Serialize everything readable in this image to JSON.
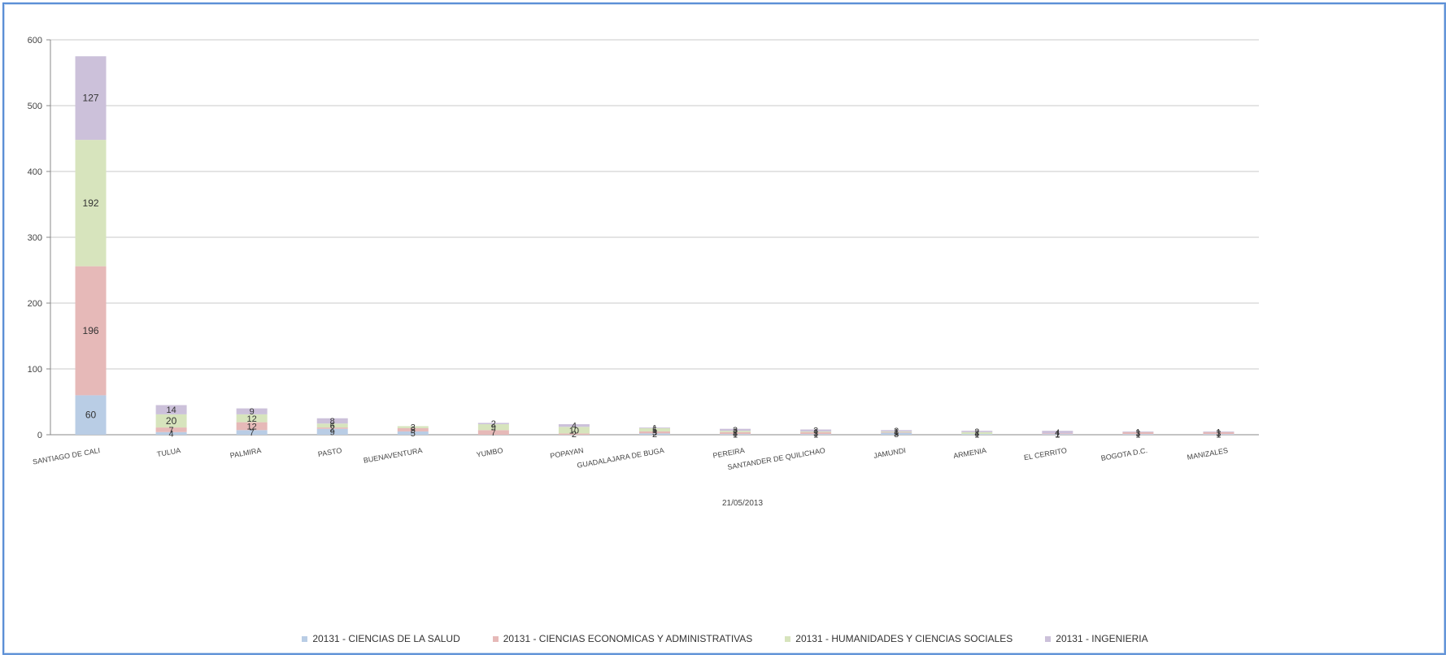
{
  "chart_data": {
    "type": "bar",
    "stacked": true,
    "xlabel": "21/05/2013",
    "ylim": [
      0,
      600
    ],
    "yticks": [
      0,
      100,
      200,
      300,
      400,
      500,
      600
    ],
    "grid": true,
    "legend_position": "bottom",
    "categories": [
      "SANTIAGO DE CALI",
      "TULUA",
      "PALMIRA",
      "PASTO",
      "BUENAVENTURA",
      "YUMBO",
      "POPAYAN",
      "GUADALAJARA DE BUGA",
      "PEREIRA",
      "SANTANDER DE QUILICHAO",
      "JAMUNDI",
      "ARMENIA",
      "EL CERRITO",
      "BOGOTA D.C.",
      "MANIZALES"
    ],
    "series": [
      {
        "name": "20131 - CIENCIAS DE LA SALUD",
        "color": "#b9cde5",
        "values": [
          60,
          4,
          7,
          9,
          5,
          0,
          0,
          2,
          1,
          1,
          3,
          1,
          1,
          1,
          1
        ]
      },
      {
        "name": "20131 - CIENCIAS ECONOMICAS Y ADMINISTRATIVAS",
        "color": "#e6b9b8",
        "values": [
          196,
          7,
          12,
          2,
          5,
          7,
          2,
          3,
          3,
          3,
          1,
          0,
          1,
          3,
          3
        ]
      },
      {
        "name": "20131 - HUMANIDADES Y CIENCIAS SOCIALES",
        "color": "#d7e4bd",
        "values": [
          192,
          20,
          12,
          6,
          3,
          9,
          10,
          5,
          2,
          1,
          1,
          3,
          0,
          0,
          0
        ]
      },
      {
        "name": "20131 - INGENIERIA",
        "color": "#ccc1da",
        "values": [
          127,
          14,
          9,
          8,
          0,
          2,
          4,
          1,
          3,
          3,
          2,
          2,
          4,
          1,
          1
        ]
      }
    ]
  }
}
